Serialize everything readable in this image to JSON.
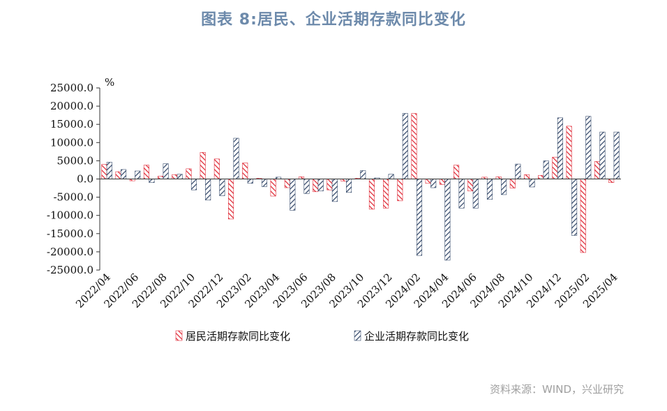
{
  "title": "图表 8:居民、企业活期存款同比变化",
  "source": "资料来源：WIND，兴业研究",
  "chart_data": {
    "type": "bar",
    "unit_label": "%",
    "ylim": [
      -25000,
      25000
    ],
    "yticks": [
      25000,
      20000,
      15000,
      10000,
      5000,
      0,
      -5000,
      -10000,
      -15000,
      -20000,
      -25000
    ],
    "ytick_labels": [
      "25000.0",
      "20000.0",
      "15000.0",
      "10000.0",
      "5000.0",
      "0.0",
      "-5000.0",
      "-10000.0",
      "-15000.0",
      "-20000.0",
      "-25000.0"
    ],
    "categories": [
      "2022/04",
      "2022/05",
      "2022/06",
      "2022/07",
      "2022/08",
      "2022/09",
      "2022/10",
      "2022/11",
      "2022/12",
      "2023/01",
      "2023/02",
      "2023/03",
      "2023/04",
      "2023/05",
      "2023/06",
      "2023/07",
      "2023/08",
      "2023/09",
      "2023/10",
      "2023/11",
      "2023/12",
      "2024/01",
      "2024/02",
      "2024/03",
      "2024/04",
      "2024/05",
      "2024/06",
      "2024/07",
      "2024/08",
      "2024/09",
      "2024/10",
      "2024/11",
      "2024/12",
      "2025/01",
      "2025/02",
      "2025/03",
      "2025/04"
    ],
    "xtick_labels": [
      "2022/04",
      "",
      "2022/06",
      "",
      "2022/08",
      "",
      "2022/10",
      "",
      "2022/12",
      "",
      "2023/02",
      "",
      "2023/04",
      "",
      "2023/06",
      "",
      "2023/08",
      "",
      "2023/10",
      "",
      "2023/12",
      "",
      "2024/02",
      "",
      "2024/04",
      "",
      "2024/06",
      "",
      "2024/08",
      "",
      "2024/10",
      "",
      "2024/12",
      "",
      "2025/02",
      "",
      "2025/04"
    ],
    "series": [
      {
        "name": "居民活期存款同比变化",
        "color": "#e0303c",
        "values": [
          4000,
          2000,
          -500,
          3800,
          800,
          1200,
          2800,
          7300,
          5500,
          -11000,
          4400,
          200,
          -4700,
          -2400,
          600,
          -3500,
          -3000,
          -600,
          200,
          -8300,
          -8000,
          -6000,
          18000,
          -1200,
          -1500,
          3800,
          -3300,
          500,
          600,
          -2500,
          1200,
          1000,
          6000,
          14500,
          -20200,
          4800,
          -1000
        ]
      },
      {
        "name": "企业活期存款同比变化",
        "color": "#3a4e6e",
        "values": [
          4600,
          2600,
          2200,
          -1000,
          4200,
          1300,
          -3000,
          -5800,
          -4600,
          11200,
          -1200,
          -2100,
          500,
          -8600,
          -4000,
          -3300,
          -6200,
          -3700,
          2300,
          300,
          1300,
          18000,
          -21000,
          -2400,
          -22300,
          -8000,
          -8000,
          -5600,
          -4300,
          4100,
          -2200,
          5000,
          16800,
          -15500,
          17200,
          12900,
          12900
        ]
      }
    ],
    "legend_position": "bottom",
    "grid": false
  }
}
